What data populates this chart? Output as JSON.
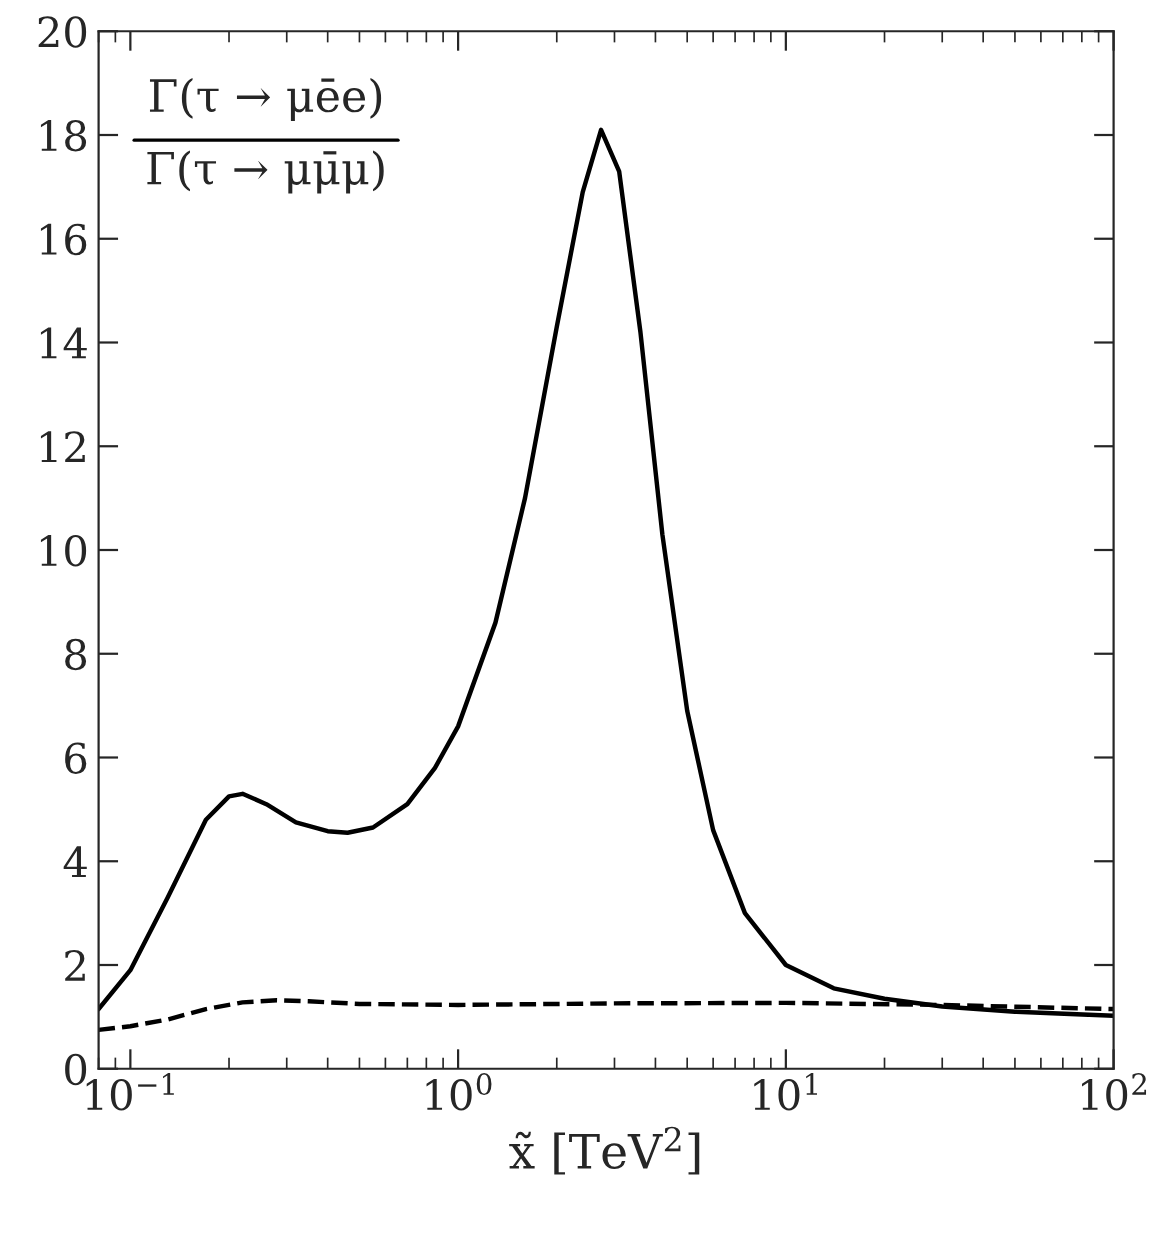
{
  "chart_data": {
    "type": "line",
    "xlabel": "x̃ [TeV$^{2}$]",
    "annotations": [
      "Γ(τ → μēe)",
      "Γ(τ → μμ̄μ)"
    ],
    "log": "x",
    "xlim": [
      0.08,
      100
    ],
    "xticks": [
      {
        "value": 0.1,
        "label": "10$^{−1}$"
      },
      {
        "value": 1,
        "label": "10$^{0}$"
      },
      {
        "value": 10,
        "label": "10$^{1}$"
      },
      {
        "value": 100,
        "label": "10$^{2}$"
      }
    ],
    "ylim": [
      0,
      20
    ],
    "yticks": [
      0,
      2,
      4,
      6,
      8,
      10,
      12,
      14,
      16,
      18,
      20
    ],
    "grid": false,
    "legend": false,
    "series": [
      {
        "color": "#000000",
        "line_style": "solid",
        "x": [
          0.08,
          0.1,
          0.13,
          0.17,
          0.2,
          0.22,
          0.26,
          0.32,
          0.4,
          0.46,
          0.55,
          0.7,
          0.85,
          1.0,
          1.3,
          1.6,
          2.0,
          2.4,
          2.73,
          3.1,
          3.6,
          4.2,
          5.0,
          6.0,
          7.5,
          10,
          14,
          20,
          30,
          50,
          100
        ],
        "values": [
          1.15,
          1.9,
          3.3,
          4.8,
          5.25,
          5.3,
          5.1,
          4.75,
          4.58,
          4.55,
          4.65,
          5.1,
          5.8,
          6.6,
          8.6,
          11.0,
          14.3,
          16.9,
          18.1,
          17.3,
          14.2,
          10.3,
          6.9,
          4.6,
          3.0,
          2.0,
          1.55,
          1.35,
          1.2,
          1.1,
          1.02
        ]
      },
      {
        "color": "#000000",
        "line_style": "dashed",
        "x": [
          0.08,
          0.1,
          0.13,
          0.17,
          0.22,
          0.28,
          0.35,
          0.5,
          1.0,
          3.0,
          10,
          30,
          100
        ],
        "values": [
          0.75,
          0.82,
          0.95,
          1.15,
          1.28,
          1.32,
          1.3,
          1.25,
          1.23,
          1.26,
          1.27,
          1.23,
          1.15
        ]
      }
    ]
  }
}
